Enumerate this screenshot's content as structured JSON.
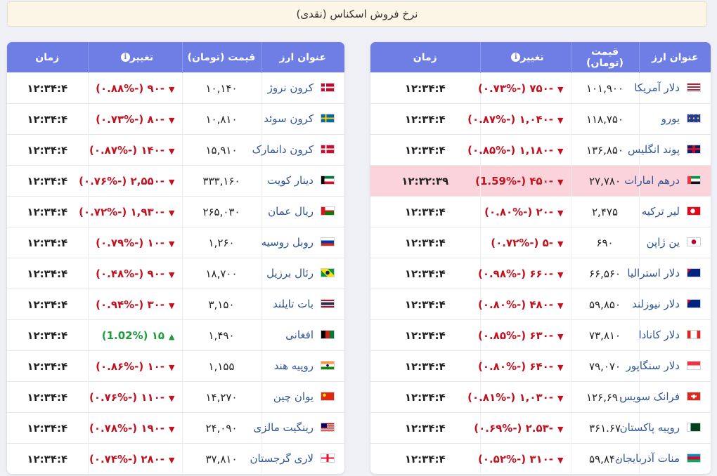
{
  "header": {
    "title": "نرخ فروش اسکناس (نقدی)"
  },
  "columns": {
    "name": "عنوان ارز",
    "price": "قیمت (تومان)",
    "change": "تغییر",
    "time": "زمان",
    "info_icon": "i"
  },
  "right_table": [
    {
      "name": "دلار آمریکا",
      "flag": "us",
      "price": "۱۰۱,۹۰۰",
      "change": "-۷۵۰ (-۰.۷۳%)",
      "dir": "down",
      "time": "۱۲:۳۴:۴"
    },
    {
      "name": "یورو",
      "flag": "eu",
      "price": "۱۱۸,۷۵۰",
      "change": "-۱,۰۴۰ (-۰.۸۷%)",
      "dir": "down",
      "time": "۱۲:۳۴:۴"
    },
    {
      "name": "پوند انگلیس",
      "flag": "gb",
      "price": "۱۳۶,۸۵۰",
      "change": "-۱,۱۸۰ (-۰.۸۵%)",
      "dir": "down",
      "time": "۱۲:۳۴:۴"
    },
    {
      "name": "درهم امارات",
      "flag": "ae",
      "price": "۲۷,۷۸۰",
      "change": "-۴۵۰ (-1.59%)",
      "dir": "down",
      "time": "۱۲:۳۲:۳۹",
      "highlight": true
    },
    {
      "name": "لیر ترکیه",
      "flag": "tr",
      "price": "۲,۴۷۵",
      "change": "-۲۰ (-۰.۸۰%)",
      "dir": "down",
      "time": "۱۲:۳۴:۴"
    },
    {
      "name": "ین ژاپن",
      "flag": "jp",
      "price": "۶۹۰",
      "change": "-۵ (-۰.۷۲%)",
      "dir": "down",
      "time": "۱۲:۳۴:۴"
    },
    {
      "name": "دلار استرالیا",
      "flag": "au",
      "price": "۶۶,۵۶۰",
      "change": "-۶۶۰ (-۰.۹۸%)",
      "dir": "down",
      "time": "۱۲:۳۴:۴"
    },
    {
      "name": "دلار نیوزلند",
      "flag": "nz",
      "price": "۵۹,۸۵۰",
      "change": "-۴۸۰ (-۰.۸۰%)",
      "dir": "down",
      "time": "۱۲:۳۴:۴"
    },
    {
      "name": "دلار کانادا",
      "flag": "ca",
      "price": "۷۳,۸۱۰",
      "change": "-۶۳۰ (-۰.۸۵%)",
      "dir": "down",
      "time": "۱۲:۳۴:۴"
    },
    {
      "name": "دلار سنگاپور",
      "flag": "sg",
      "price": "۷۹,۰۷۰",
      "change": "-۶۴۰ (-۰.۸۰%)",
      "dir": "down",
      "time": "۱۲:۳۴:۴"
    },
    {
      "name": "فرانک سویس",
      "flag": "ch",
      "price": "۱۲۶,۶۹۰",
      "change": "-۱,۰۳۰ (-۰.۸۱%)",
      "dir": "down",
      "time": "۱۲:۳۴:۴"
    },
    {
      "name": "روپیه پاکستان",
      "flag": "pk",
      "price": "۳۶۱.۶۷",
      "change": "-۲.۵۳ (-۰.۶۹%)",
      "dir": "down",
      "time": "۱۲:۳۴:۴"
    },
    {
      "name": "منات آذربایجان",
      "flag": "az",
      "price": "۵۹,۸۴۰",
      "change": "-۳۱۰ (-۰.۵۲%)",
      "dir": "down",
      "time": "۱۲:۳۴:۴"
    }
  ],
  "left_table": [
    {
      "name": "کرون نروژ",
      "flag": "no",
      "price": "۱۰,۱۴۰",
      "change": "-۹۰ (-۰.۸۸%)",
      "dir": "down",
      "time": "۱۲:۳۴:۴"
    },
    {
      "name": "کرون سوئد",
      "flag": "se",
      "price": "۱۰,۸۱۰",
      "change": "-۸۰ (-۰.۷۳%)",
      "dir": "down",
      "time": "۱۲:۳۴:۴"
    },
    {
      "name": "کرون دانمارک",
      "flag": "dk",
      "price": "۱۵,۹۱۰",
      "change": "-۱۴۰ (-۰.۸۷%)",
      "dir": "down",
      "time": "۱۲:۳۴:۴"
    },
    {
      "name": "دینار کویت",
      "flag": "kw",
      "price": "۳۳۳,۱۶۰",
      "change": "-۲,۵۵۰ (-۰.۷۶%)",
      "dir": "down",
      "time": "۱۲:۳۴:۴"
    },
    {
      "name": "ریال عمان",
      "flag": "om",
      "price": "۲۶۵,۰۳۰",
      "change": "-۱,۹۳۰ (-۰.۷۲%)",
      "dir": "down",
      "time": "۱۲:۳۴:۴"
    },
    {
      "name": "روبل روسیه",
      "flag": "ru",
      "price": "۱,۲۶۰",
      "change": "-۱۰ (-۰.۷۹%)",
      "dir": "down",
      "time": "۱۲:۳۴:۴"
    },
    {
      "name": "رئال برزیل",
      "flag": "br",
      "price": "۱۸,۷۰۰",
      "change": "-۹۰ (-۰.۴۸%)",
      "dir": "down",
      "time": "۱۲:۳۴:۴"
    },
    {
      "name": "بات تایلند",
      "flag": "th",
      "price": "۳,۱۵۰",
      "change": "-۳۰ (-۰.۹۴%)",
      "dir": "down",
      "time": "۱۲:۳۴:۴"
    },
    {
      "name": "افغانی",
      "flag": "af",
      "price": "۱,۴۹۰",
      "change": "۱۵ (1.02%)",
      "dir": "up",
      "time": "۱۲:۳۴:۴"
    },
    {
      "name": "روپیه هند",
      "flag": "in",
      "price": "۱,۱۵۵",
      "change": "-۱۰ (-۰.۸۶%)",
      "dir": "down",
      "time": "۱۲:۳۴:۴"
    },
    {
      "name": "یوان چین",
      "flag": "cn",
      "price": "۱۴,۲۷۰",
      "change": "-۱۱۰ (-۰.۷۶%)",
      "dir": "down",
      "time": "۱۲:۳۴:۴"
    },
    {
      "name": "رینگیت مالزی",
      "flag": "my",
      "price": "۲۴,۰۹۰",
      "change": "-۱۹۰ (-۰.۷۸%)",
      "dir": "down",
      "time": "۱۲:۳۴:۴"
    },
    {
      "name": "لاری گرجستان",
      "flag": "ge",
      "price": "۳۷,۸۱۰",
      "change": "-۲۸۰ (-۰.۷۴%)",
      "dir": "down",
      "time": "۱۲:۳۴:۴"
    }
  ],
  "colors": {
    "header_bg": "#6f7ee4",
    "down": "#c1121f",
    "up": "#1e9e3a",
    "highlight_row": "#fbd3da",
    "currency_name": "#2f5595"
  }
}
